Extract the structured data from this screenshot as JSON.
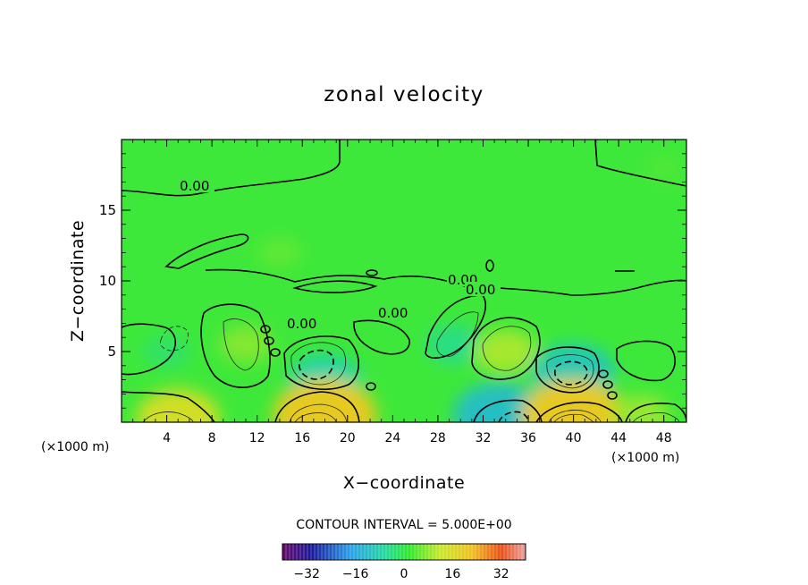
{
  "chart_data": {
    "type": "heatmap",
    "title": "zonal velocity",
    "xlabel": "X−coordinate",
    "ylabel": "Z−coordinate",
    "x_unit_left": "(×1000 m)",
    "x_unit_right": "(×1000 m)",
    "xlim": [
      0,
      50
    ],
    "ylim": [
      0,
      20
    ],
    "x_ticks": [
      "4",
      "8",
      "12",
      "16",
      "20",
      "24",
      "28",
      "32",
      "36",
      "40",
      "44",
      "48"
    ],
    "y_ticks": [
      "5",
      "10",
      "15"
    ],
    "contour_interval_text": "CONTOUR INTERVAL = 5.000E+00",
    "contour_labels": [
      "0.00",
      "0.00",
      "0.00",
      "0.00",
      "0.00"
    ],
    "colorbar": {
      "range": [
        -40,
        40
      ],
      "ticks": [
        "−32",
        "−16",
        "0",
        "16",
        "32"
      ],
      "tick_values": [
        -32,
        -16,
        0,
        16,
        32
      ]
    },
    "features": [
      {
        "x": 18,
        "z": 3,
        "u": -8
      },
      {
        "x": 40,
        "z": 3.5,
        "u": -10
      },
      {
        "x": 33.5,
        "z": 0.5,
        "u": -12
      },
      {
        "x": 29.5,
        "z": 5.5,
        "u": -5
      },
      {
        "x": 4,
        "z": 5,
        "u": -3
      },
      {
        "x": 11,
        "z": 5.5,
        "u": 4
      },
      {
        "x": 34,
        "z": 5,
        "u": 6
      },
      {
        "x": 18,
        "z": 0.5,
        "u": 14
      },
      {
        "x": 40,
        "z": 0.5,
        "u": 14
      },
      {
        "x": 5,
        "z": 0.3,
        "u": 10
      },
      {
        "x": 46,
        "z": 0.5,
        "u": 5
      },
      {
        "x": 14,
        "z": 12,
        "u": 2
      },
      {
        "x": 48,
        "z": 18,
        "u": 1
      }
    ]
  }
}
